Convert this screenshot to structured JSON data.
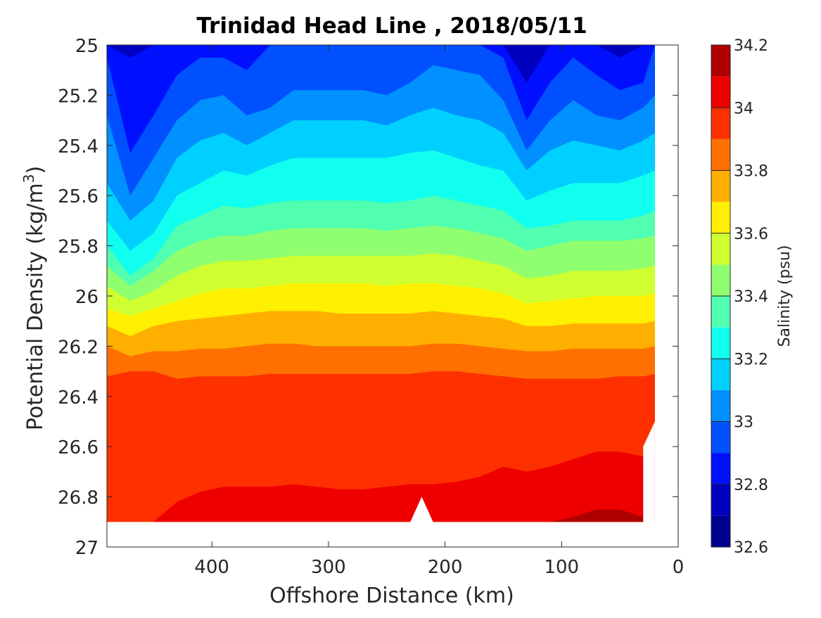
{
  "chart_data": {
    "type": "heatmap",
    "subtype": "filled-contour",
    "title": "Trinidad Head Line , 2018/05/11",
    "xlabel": "Offshore Distance (km)",
    "ylabel_main": "Potential Density (kg/m",
    "ylabel_sup": "3",
    "ylabel_close": ")",
    "colorbar_label": "Salinity (psu)",
    "xlim": [
      490,
      0
    ],
    "x_reversed": true,
    "ylim": [
      25,
      27
    ],
    "y_reversed": true,
    "x_ticks": [
      400,
      300,
      200,
      100,
      0
    ],
    "x_tick_labels": [
      "400",
      "300",
      "200",
      "100",
      "0"
    ],
    "y_ticks": [
      25,
      25.2,
      25.4,
      25.6,
      25.8,
      26,
      26.2,
      26.4,
      26.6,
      26.8,
      27
    ],
    "y_tick_labels": [
      "25",
      "25.2",
      "25.4",
      "25.6",
      "25.8",
      "26",
      "26.2",
      "26.4",
      "26.6",
      "26.8",
      "27"
    ],
    "colorbar_ticks": [
      32.6,
      32.8,
      33,
      33.2,
      33.4,
      33.6,
      33.8,
      34,
      34.2
    ],
    "colorbar_tick_labels": [
      "32.6",
      "32.8",
      "33",
      "33.2",
      "33.4",
      "33.6",
      "33.8",
      "34",
      "34.2"
    ],
    "colorbar_range": [
      32.6,
      34.2
    ],
    "data_extent": {
      "x_min": 20,
      "x_max": 490,
      "sigma_max": 26.9
    },
    "levels": [
      {
        "lower": 32.6,
        "upper": 32.7,
        "color": "#00008f"
      },
      {
        "lower": 32.7,
        "upper": 32.8,
        "color": "#0000bf"
      },
      {
        "lower": 32.8,
        "upper": 32.9,
        "color": "#0010ff"
      },
      {
        "lower": 32.9,
        "upper": 33.0,
        "color": "#0050ff"
      },
      {
        "lower": 33.0,
        "upper": 33.1,
        "color": "#0090ff"
      },
      {
        "lower": 33.1,
        "upper": 33.2,
        "color": "#00d0ff"
      },
      {
        "lower": 33.2,
        "upper": 33.3,
        "color": "#10ffef"
      },
      {
        "lower": 33.3,
        "upper": 33.4,
        "color": "#50ffaf"
      },
      {
        "lower": 33.4,
        "upper": 33.5,
        "color": "#90ff6f"
      },
      {
        "lower": 33.5,
        "upper": 33.6,
        "color": "#cfff30"
      },
      {
        "lower": 33.6,
        "upper": 33.7,
        "color": "#ffef00"
      },
      {
        "lower": 33.7,
        "upper": 33.8,
        "color": "#ffaf00"
      },
      {
        "lower": 33.8,
        "upper": 33.9,
        "color": "#ff7000"
      },
      {
        "lower": 33.9,
        "upper": 34.0,
        "color": "#ff3000"
      },
      {
        "lower": 34.0,
        "upper": 34.1,
        "color": "#ef0000"
      },
      {
        "lower": 34.1,
        "upper": 34.2,
        "color": "#af0000"
      }
    ],
    "station_x": [
      490,
      470,
      450,
      430,
      410,
      390,
      370,
      350,
      330,
      310,
      290,
      270,
      250,
      230,
      210,
      190,
      170,
      150,
      130,
      110,
      90,
      70,
      50,
      30,
      20
    ],
    "isohaline_boundaries": [
      {
        "value": 32.8,
        "sigma": [
          25.0,
          25.05,
          25.0,
          25.0,
          25.0,
          25.0,
          25.0,
          25.0,
          25.0,
          25.0,
          25.0,
          25.0,
          25.0,
          25.0,
          25.0,
          25.0,
          25.0,
          25.0,
          25.15,
          25.0,
          25.0,
          25.0,
          25.05,
          25.0,
          25.0
        ]
      },
      {
        "value": 32.9,
        "sigma": [
          25.05,
          25.43,
          25.28,
          25.12,
          25.05,
          25.05,
          25.1,
          25.0,
          25.0,
          25.0,
          25.0,
          25.0,
          25.0,
          25.0,
          25.0,
          25.0,
          25.0,
          25.05,
          25.3,
          25.15,
          25.05,
          25.12,
          25.18,
          25.15,
          25.0
        ]
      },
      {
        "value": 33.0,
        "sigma": [
          25.28,
          25.6,
          25.45,
          25.3,
          25.22,
          25.2,
          25.28,
          25.25,
          25.18,
          25.18,
          25.18,
          25.18,
          25.2,
          25.15,
          25.08,
          25.1,
          25.12,
          25.22,
          25.42,
          25.3,
          25.22,
          25.28,
          25.3,
          25.25,
          25.2
        ]
      },
      {
        "value": 33.1,
        "sigma": [
          25.55,
          25.7,
          25.62,
          25.45,
          25.38,
          25.35,
          25.4,
          25.35,
          25.3,
          25.3,
          25.3,
          25.3,
          25.32,
          25.28,
          25.25,
          25.28,
          25.3,
          25.35,
          25.5,
          25.42,
          25.38,
          25.4,
          25.42,
          25.38,
          25.35
        ]
      },
      {
        "value": 33.2,
        "sigma": [
          25.7,
          25.82,
          25.75,
          25.6,
          25.55,
          25.5,
          25.52,
          25.48,
          25.45,
          25.45,
          25.45,
          25.45,
          25.45,
          25.43,
          25.42,
          25.45,
          25.48,
          25.5,
          25.62,
          25.58,
          25.55,
          25.55,
          25.55,
          25.52,
          25.5
        ]
      },
      {
        "value": 33.3,
        "sigma": [
          25.8,
          25.92,
          25.85,
          25.72,
          25.68,
          25.64,
          25.65,
          25.63,
          25.62,
          25.62,
          25.62,
          25.62,
          25.63,
          25.62,
          25.6,
          25.62,
          25.64,
          25.66,
          25.73,
          25.72,
          25.7,
          25.7,
          25.7,
          25.68,
          25.66
        ]
      },
      {
        "value": 33.4,
        "sigma": [
          25.88,
          25.96,
          25.9,
          25.82,
          25.78,
          25.76,
          25.76,
          25.74,
          25.73,
          25.73,
          25.73,
          25.73,
          25.74,
          25.73,
          25.72,
          25.73,
          25.75,
          25.77,
          25.82,
          25.8,
          25.78,
          25.78,
          25.78,
          25.77,
          25.76
        ]
      },
      {
        "value": 33.5,
        "sigma": [
          25.96,
          26.02,
          25.98,
          25.92,
          25.88,
          25.86,
          25.86,
          25.85,
          25.84,
          25.84,
          25.84,
          25.84,
          25.84,
          25.84,
          25.83,
          25.84,
          25.86,
          25.88,
          25.93,
          25.92,
          25.9,
          25.9,
          25.9,
          25.89,
          25.88
        ]
      },
      {
        "value": 33.6,
        "sigma": [
          26.05,
          26.08,
          26.05,
          26.02,
          25.99,
          25.97,
          25.97,
          25.96,
          25.95,
          25.95,
          25.95,
          25.95,
          25.96,
          25.95,
          25.95,
          25.96,
          25.97,
          25.99,
          26.03,
          26.02,
          26.01,
          26.0,
          26.0,
          26.0,
          25.99
        ]
      },
      {
        "value": 33.7,
        "sigma": [
          26.12,
          26.16,
          26.12,
          26.1,
          26.09,
          26.08,
          26.07,
          26.06,
          26.06,
          26.06,
          26.07,
          26.07,
          26.07,
          26.07,
          26.06,
          26.07,
          26.08,
          26.09,
          26.12,
          26.12,
          26.11,
          26.11,
          26.11,
          26.11,
          26.1
        ]
      },
      {
        "value": 33.8,
        "sigma": [
          26.2,
          26.24,
          26.22,
          26.22,
          26.21,
          26.21,
          26.2,
          26.19,
          26.19,
          26.2,
          26.2,
          26.2,
          26.2,
          26.2,
          26.19,
          26.19,
          26.2,
          26.21,
          26.22,
          26.22,
          26.21,
          26.21,
          26.21,
          26.21,
          26.2
        ]
      },
      {
        "value": 33.9,
        "sigma": [
          26.32,
          26.3,
          26.3,
          26.33,
          26.32,
          26.32,
          26.32,
          26.31,
          26.31,
          26.31,
          26.31,
          26.31,
          26.31,
          26.31,
          26.3,
          26.3,
          26.31,
          26.32,
          26.33,
          26.33,
          26.33,
          26.33,
          26.32,
          26.32,
          26.31
        ]
      },
      {
        "value": 34.0,
        "sigma": [
          26.92,
          26.92,
          26.9,
          26.82,
          26.78,
          26.76,
          26.76,
          26.76,
          26.75,
          26.76,
          26.77,
          26.77,
          26.76,
          26.75,
          26.75,
          26.74,
          26.72,
          26.68,
          26.7,
          26.68,
          26.65,
          26.62,
          26.62,
          26.64,
          26.65
        ]
      },
      {
        "value": 34.1,
        "sigma": [
          26.95,
          26.95,
          26.95,
          26.95,
          26.95,
          26.95,
          26.95,
          26.95,
          26.95,
          26.95,
          26.95,
          26.95,
          26.95,
          26.95,
          26.95,
          26.95,
          26.95,
          26.95,
          26.95,
          26.95,
          26.88,
          26.85,
          26.85,
          26.88,
          26.95
        ]
      }
    ],
    "bottom_gaps": [
      {
        "x_from": 230,
        "x_to": 210,
        "apex_x": 220,
        "apex_sigma": 26.8
      },
      {
        "x_from": 30,
        "x_to": 20,
        "top_sigma_at_x_to": 26.5,
        "top_sigma_at_x_from": 26.6
      }
    ]
  }
}
